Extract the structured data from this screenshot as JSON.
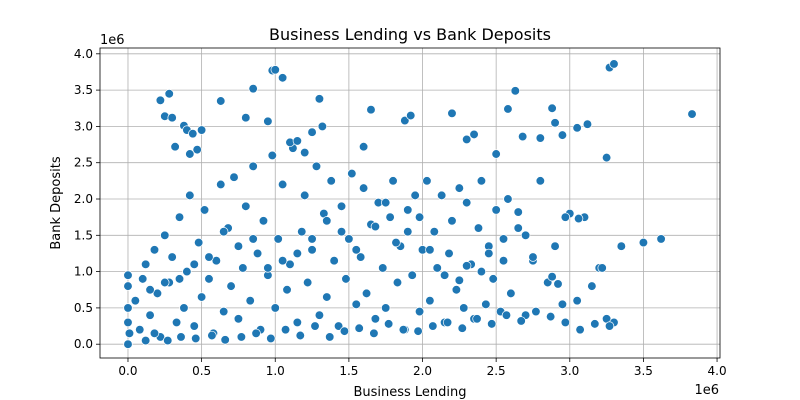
{
  "chart_data": {
    "type": "scatter",
    "title": "Business Lending vs Bank Deposits",
    "xlabel": "Business Lending",
    "ylabel": "Bank Deposits",
    "x_offset_label": "1e6",
    "y_offset_label": "1e6",
    "xlim": [
      -0.19,
      4.02
    ],
    "ylim": [
      -0.19,
      4.08
    ],
    "xticks": [
      0.0,
      0.5,
      1.0,
      1.5,
      2.0,
      2.5,
      3.0,
      3.5,
      4.0
    ],
    "xtick_labels": [
      "0.0",
      "0.5",
      "1.0",
      "1.5",
      "2.0",
      "2.5",
      "3.0",
      "3.5",
      "4.0"
    ],
    "yticks": [
      0.0,
      0.5,
      1.0,
      1.5,
      2.0,
      2.5,
      3.0,
      3.5,
      4.0
    ],
    "ytick_labels": [
      "0.0",
      "0.5",
      "1.0",
      "1.5",
      "2.0",
      "2.5",
      "3.0",
      "3.5",
      "4.0"
    ],
    "grid": true,
    "legend": "none",
    "marker_color": "#1f77b4",
    "marker_edge": "#ffffff",
    "series": [
      {
        "x": [
          0.0,
          0.0,
          0.0,
          0.0,
          0.0,
          0.01,
          0.05,
          0.08,
          0.1,
          0.12,
          0.15,
          0.18,
          0.2,
          0.22,
          0.25,
          0.28,
          0.3,
          0.33,
          0.35,
          0.38,
          0.4,
          0.42,
          0.45,
          0.48,
          0.5,
          0.52,
          0.55,
          0.58,
          0.6,
          0.63,
          0.65,
          0.68,
          0.7,
          0.72,
          0.75,
          0.78,
          0.8,
          0.83,
          0.85,
          0.88,
          0.9,
          0.92,
          0.95,
          0.98,
          1.0,
          1.02,
          1.05,
          1.08,
          1.1,
          1.12,
          1.15,
          1.18,
          1.2,
          1.22,
          1.25,
          1.28,
          1.3,
          1.33,
          1.35,
          1.38,
          1.4,
          1.43,
          1.45,
          1.48,
          1.5,
          1.52,
          1.55,
          1.58,
          1.6,
          1.62,
          1.65,
          1.68,
          1.7,
          1.73,
          1.75,
          1.78,
          1.8,
          1.83,
          1.85,
          1.88,
          1.9,
          1.93,
          1.95,
          1.98,
          2.0,
          2.03,
          2.05,
          2.08,
          2.1,
          2.13,
          2.15,
          2.18,
          2.2,
          2.23,
          2.25,
          2.28,
          2.3,
          2.33,
          2.35,
          2.38,
          2.4,
          2.43,
          2.45,
          2.48,
          2.5,
          2.53,
          2.55,
          2.58,
          2.6,
          2.65,
          2.7,
          2.75,
          2.8,
          2.85,
          2.9,
          2.95,
          3.0,
          3.05,
          3.1,
          3.15,
          3.2,
          3.25,
          3.3,
          3.35,
          3.5,
          3.62,
          3.83,
          0.22,
          0.28,
          0.25,
          0.32,
          0.3,
          0.38,
          0.4,
          0.42,
          0.44,
          0.47,
          0.5,
          0.63,
          0.8,
          0.85,
          0.95,
          0.98,
          1.0,
          1.05,
          1.1,
          1.15,
          1.2,
          1.25,
          1.3,
          1.32,
          1.6,
          1.65,
          1.88,
          1.92,
          2.2,
          2.3,
          2.35,
          2.5,
          2.58,
          2.63,
          2.68,
          2.8,
          2.88,
          2.9,
          2.95,
          3.05,
          3.12,
          3.25,
          3.27,
          3.3,
          3.22,
          3.06,
          2.97,
          2.92,
          2.88,
          2.75,
          2.7,
          2.65,
          2.55,
          2.45,
          2.4,
          2.3,
          2.25,
          2.15,
          2.05,
          1.98,
          1.9,
          1.82,
          1.75,
          1.68,
          1.55,
          1.45,
          1.35,
          1.25,
          1.15,
          1.05,
          0.95,
          0.85,
          0.75,
          0.65,
          0.55,
          0.45,
          0.35,
          0.25,
          0.15,
          0.05,
          0.12,
          0.18,
          0.27,
          0.36,
          0.46,
          0.57,
          0.66,
          0.77,
          0.87,
          0.97,
          1.07,
          1.17,
          1.27,
          1.37,
          1.47,
          1.57,
          1.67,
          1.77,
          1.87,
          1.97,
          2.07,
          2.17,
          2.27,
          2.37,
          2.47,
          2.57,
          2.67,
          2.77,
          2.87,
          2.97,
          3.07,
          3.17,
          3.27
        ],
        "y": [
          0.0,
          0.3,
          0.5,
          0.8,
          0.95,
          0.15,
          0.6,
          0.2,
          0.9,
          1.1,
          0.4,
          1.3,
          0.7,
          0.1,
          1.5,
          0.85,
          1.2,
          0.3,
          1.75,
          0.5,
          1.0,
          2.05,
          0.25,
          1.4,
          0.65,
          1.85,
          0.9,
          0.15,
          1.15,
          2.2,
          0.45,
          1.6,
          0.8,
          2.3,
          0.35,
          1.05,
          1.9,
          0.6,
          2.45,
          1.25,
          0.2,
          1.7,
          0.95,
          2.6,
          0.5,
          1.45,
          2.2,
          0.75,
          1.1,
          2.7,
          0.3,
          1.55,
          2.05,
          0.85,
          1.3,
          2.45,
          0.4,
          1.8,
          0.65,
          2.25,
          1.15,
          0.25,
          1.9,
          0.9,
          1.45,
          2.35,
          0.55,
          1.2,
          2.15,
          0.7,
          1.65,
          0.35,
          1.95,
          1.05,
          0.5,
          1.75,
          2.25,
          0.85,
          1.35,
          0.2,
          1.85,
          0.95,
          2.05,
          0.45,
          1.3,
          2.25,
          0.6,
          1.55,
          1.05,
          2.05,
          0.3,
          1.25,
          1.7,
          0.75,
          2.15,
          0.5,
          1.95,
          1.1,
          0.35,
          1.6,
          2.25,
          0.55,
          1.35,
          0.9,
          1.85,
          0.45,
          1.15,
          2.0,
          0.7,
          1.6,
          0.4,
          1.15,
          2.25,
          0.85,
          1.35,
          0.55,
          1.8,
          0.6,
          1.75,
          0.8,
          1.05,
          0.35,
          0.3,
          1.35,
          1.4,
          1.45,
          3.17,
          3.36,
          3.45,
          3.14,
          2.72,
          3.12,
          3.01,
          2.95,
          2.62,
          2.9,
          2.68,
          2.95,
          3.35,
          3.12,
          3.52,
          3.07,
          3.77,
          3.78,
          3.67,
          2.78,
          2.8,
          2.64,
          2.92,
          3.38,
          3.0,
          2.72,
          3.23,
          3.08,
          3.15,
          3.18,
          2.82,
          2.89,
          2.62,
          3.24,
          3.49,
          2.86,
          2.84,
          3.25,
          3.05,
          2.88,
          2.98,
          3.03,
          2.57,
          3.81,
          3.86,
          1.05,
          1.73,
          1.75,
          0.83,
          0.93,
          1.2,
          1.5,
          1.82,
          1.45,
          1.25,
          1.0,
          1.08,
          0.88,
          0.95,
          1.3,
          1.75,
          1.55,
          1.4,
          1.95,
          1.62,
          1.3,
          1.55,
          1.7,
          1.45,
          1.25,
          1.15,
          1.05,
          1.45,
          1.35,
          1.55,
          1.2,
          1.1,
          0.9,
          0.85,
          0.75,
          0.6,
          0.05,
          0.15,
          0.05,
          0.1,
          0.08,
          0.12,
          0.06,
          0.1,
          0.15,
          0.08,
          0.2,
          0.12,
          0.25,
          0.1,
          0.18,
          0.22,
          0.15,
          0.28,
          0.2,
          0.18,
          0.25,
          0.3,
          0.22,
          0.35,
          0.28,
          0.4,
          0.32,
          0.45,
          0.38,
          0.3,
          0.2,
          0.28,
          0.25
        ]
      }
    ]
  }
}
